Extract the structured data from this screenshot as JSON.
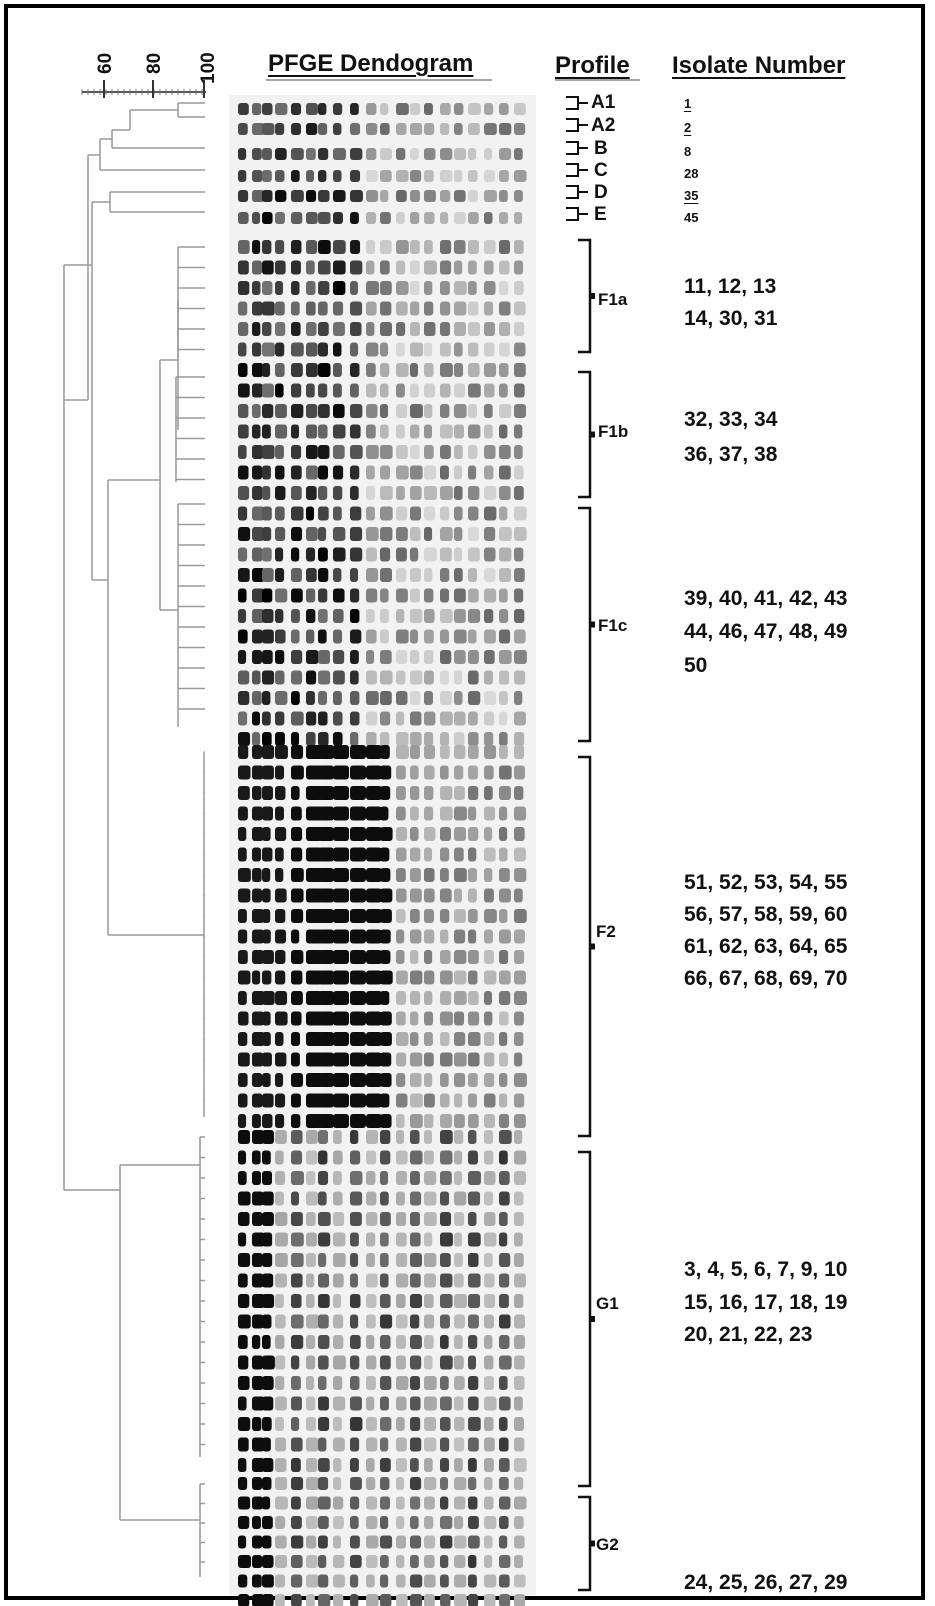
{
  "headers": {
    "dendogram_title": "PFGE Dendogram",
    "profile_title": "Profile",
    "isolate_title": "Isolate Number"
  },
  "similarity_scale": {
    "tick_labels": [
      "60",
      "80",
      "100"
    ]
  },
  "profiles": [
    {
      "label": "A1",
      "isolates": [
        {
          "text": "1",
          "underline": true
        }
      ]
    },
    {
      "label": "A2",
      "isolates": [
        {
          "text": "2",
          "underline": true
        }
      ]
    },
    {
      "label": "B",
      "isolates": [
        {
          "text": "8",
          "underline": false
        }
      ]
    },
    {
      "label": "C",
      "isolates": [
        {
          "text": "28",
          "underline": false
        }
      ]
    },
    {
      "label": "D",
      "isolates": [
        {
          "text": "35",
          "underline": true
        }
      ]
    },
    {
      "label": "E",
      "isolates": [
        {
          "text": "45",
          "underline": false
        }
      ]
    }
  ],
  "groups": [
    {
      "label": "F1a",
      "lines": [
        "11, 12, 13",
        "14, 30, 31"
      ]
    },
    {
      "label": "F1b",
      "lines": [
        "32, 33, 34",
        "36, 37, 38"
      ]
    },
    {
      "label": "F1c",
      "lines": [
        "39, 40, 41, 42, 43",
        "44, 46, 47, 48, 49",
        "50"
      ]
    },
    {
      "label": "F2",
      "lines": [
        "51, 52, 53, 54, 55",
        "56, 57, 58, 59, 60",
        "61, 62, 63, 64, 65",
        "66, 67, 68, 69, 70"
      ]
    },
    {
      "label": "G1",
      "lines": [
        "3, 4, 5, 6, 7, 9, 10",
        "15, 16, 17, 18, 19",
        "20, 21, 22, 23"
      ]
    },
    {
      "label": "G2",
      "lines": [
        "24, 25, 26, 27, 29"
      ]
    }
  ]
}
